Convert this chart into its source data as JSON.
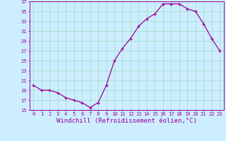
{
  "x": [
    0,
    1,
    2,
    3,
    4,
    5,
    6,
    7,
    8,
    9,
    10,
    11,
    12,
    13,
    14,
    15,
    16,
    17,
    18,
    19,
    20,
    21,
    22,
    23
  ],
  "y": [
    20,
    19,
    19,
    18.5,
    17.5,
    17,
    16.5,
    15.5,
    16.5,
    20,
    25,
    27.5,
    29.5,
    32,
    33.5,
    34.5,
    36.5,
    36.5,
    36.5,
    35.5,
    35,
    32.5,
    29.5,
    27
  ],
  "line_color": "#9b009b",
  "marker": "+",
  "bg_color": "#cceeff",
  "grid_color": "#aaddcc",
  "xlabel": "Windchill (Refroidissement éolien,°C)",
  "ylim": [
    15,
    37
  ],
  "xlim": [
    -0.5,
    23.5
  ],
  "yticks": [
    15,
    17,
    19,
    21,
    23,
    25,
    27,
    29,
    31,
    33,
    35,
    37
  ],
  "xticks": [
    0,
    1,
    2,
    3,
    4,
    5,
    6,
    7,
    8,
    9,
    10,
    11,
    12,
    13,
    14,
    15,
    16,
    17,
    18,
    19,
    20,
    21,
    22,
    23
  ],
  "tick_color": "#9b009b",
  "tick_fontsize": 5.0,
  "xlabel_fontsize": 6.5,
  "line_width": 0.9,
  "marker_size": 3.5,
  "marker_edge_width": 0.9
}
